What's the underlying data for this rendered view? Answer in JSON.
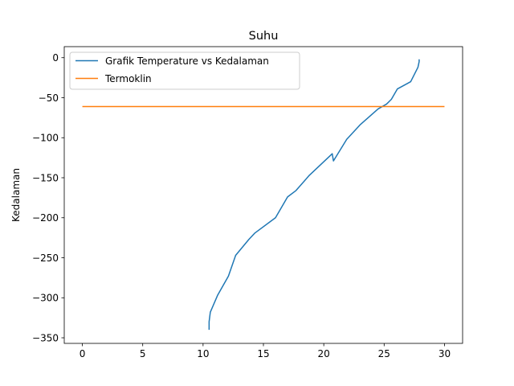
{
  "chart_data": {
    "type": "line",
    "title": "Suhu",
    "xlabel": "",
    "ylabel": "Kedalaman",
    "xlim": [
      -1.5,
      31.5
    ],
    "ylim": [
      -357,
      13.8
    ],
    "x_ticks": [
      0,
      5,
      10,
      15,
      20,
      25,
      30
    ],
    "y_ticks": [
      0,
      -50,
      -100,
      -150,
      -200,
      -250,
      -300,
      -350
    ],
    "x_tick_labels": [
      "0",
      "5",
      "10",
      "15",
      "20",
      "25",
      "30"
    ],
    "y_tick_labels": [
      "0",
      "−50",
      "−100",
      "−150",
      "−200",
      "−250",
      "−300",
      "−350"
    ],
    "grid": false,
    "legend_position": "top-left",
    "series": [
      {
        "name": "Grafik Temperature vs Kedalaman",
        "color": "#1f77b4",
        "x": [
          27.9,
          27.9,
          27.8,
          27.2,
          26.1,
          25.6,
          25.2,
          24.5,
          23.0,
          21.9,
          20.8,
          20.7,
          18.8,
          17.7,
          17.0,
          16.0,
          14.3,
          13.8,
          12.7,
          12.1,
          11.2,
          10.6,
          10.5,
          10.5
        ],
        "y": [
          -2,
          -5,
          -12,
          -30,
          -39,
          -52,
          -58,
          -64,
          -84,
          -102,
          -129,
          -120,
          -147,
          -166,
          -174,
          -200,
          -219,
          -227,
          -247,
          -273,
          -297,
          -318,
          -330,
          -340
        ]
      },
      {
        "name": "Termoklin",
        "color": "#ff7f0e",
        "x": [
          0,
          30
        ],
        "y": [
          -61,
          -61
        ]
      }
    ]
  }
}
